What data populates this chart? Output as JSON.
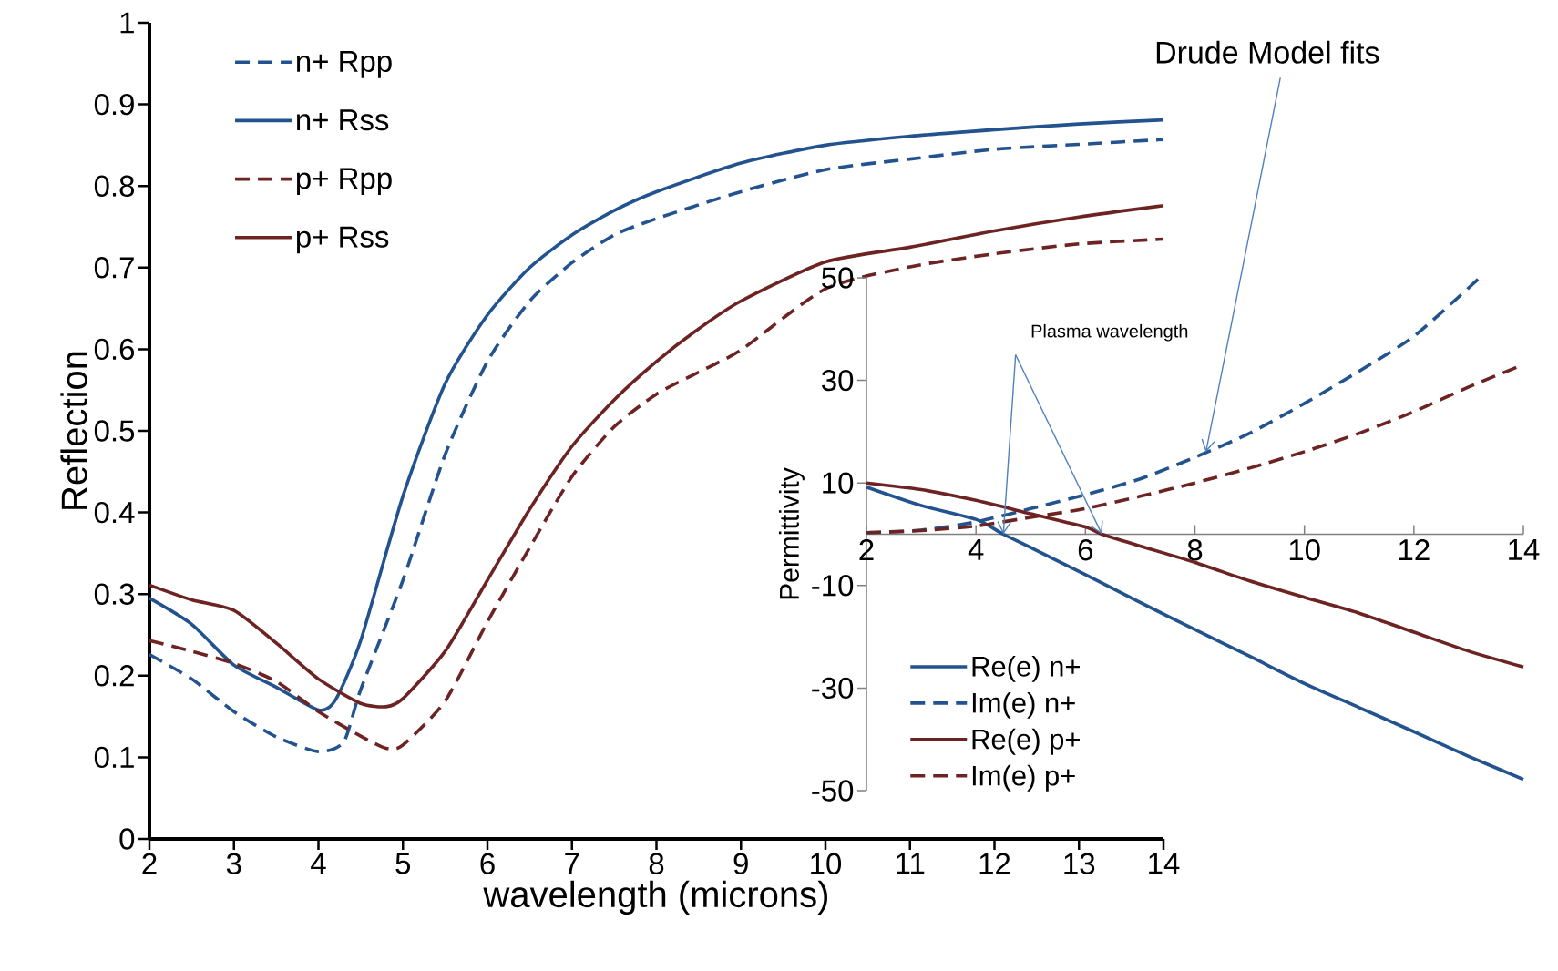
{
  "chart_data": [
    {
      "type": "line",
      "xlabel": "wavelength (microns)",
      "ylabel": "Reflection",
      "xlim": [
        2,
        14
      ],
      "ylim": [
        0,
        1
      ],
      "xticks": [
        2,
        3,
        4,
        5,
        6,
        7,
        8,
        9,
        10,
        11,
        12,
        13,
        14
      ],
      "yticks": [
        0,
        0.1,
        0.2,
        0.3,
        0.4,
        0.5,
        0.6,
        0.7,
        0.8,
        0.9,
        1
      ],
      "grid": false,
      "legend": "top left",
      "marker": "none",
      "series": [
        {
          "name": "n+ Rpp",
          "color": "#22538f",
          "line_style": "dashed",
          "x": [
            2,
            2.5,
            3,
            3.5,
            4,
            4.3,
            4.5,
            5,
            5.5,
            6,
            6.5,
            7,
            7.5,
            8,
            9,
            10,
            11,
            12,
            13,
            14
          ],
          "values": [
            0.226,
            0.196,
            0.156,
            0.125,
            0.107,
            0.119,
            0.183,
            0.317,
            0.471,
            0.585,
            0.659,
            0.706,
            0.74,
            0.76,
            0.793,
            0.82,
            0.833,
            0.845,
            0.851,
            0.857
          ]
        },
        {
          "name": "n+ Rss",
          "color": "#22538f",
          "line_style": "solid",
          "x": [
            2,
            2.5,
            3,
            3.5,
            4,
            4.2,
            4.5,
            5,
            5.5,
            6,
            6.5,
            7,
            7.5,
            8,
            9,
            10,
            11,
            12,
            13,
            14
          ],
          "values": [
            0.295,
            0.263,
            0.213,
            0.186,
            0.158,
            0.17,
            0.243,
            0.42,
            0.558,
            0.642,
            0.7,
            0.74,
            0.77,
            0.793,
            0.828,
            0.85,
            0.861,
            0.869,
            0.876,
            0.881
          ]
        },
        {
          "name": "p+ Rpp",
          "color": "#6e2323",
          "line_style": "dashed",
          "x": [
            2,
            2.5,
            3,
            3.5,
            4,
            4.5,
            4.8,
            5,
            5.5,
            6,
            6.5,
            7,
            7.5,
            8,
            8.5,
            9,
            10,
            11,
            12,
            13,
            14
          ],
          "values": [
            0.243,
            0.23,
            0.215,
            0.193,
            0.156,
            0.126,
            0.111,
            0.115,
            0.169,
            0.266,
            0.357,
            0.444,
            0.505,
            0.545,
            0.572,
            0.599,
            0.674,
            0.701,
            0.717,
            0.729,
            0.735
          ]
        },
        {
          "name": "p+ Rss",
          "color": "#6e2323",
          "line_style": "solid",
          "x": [
            2,
            2.5,
            3,
            3.5,
            4,
            4.5,
            4.8,
            5,
            5.5,
            6,
            6.5,
            7,
            7.5,
            8,
            8.5,
            9,
            10,
            11,
            12,
            13,
            14
          ],
          "values": [
            0.311,
            0.293,
            0.28,
            0.24,
            0.196,
            0.166,
            0.162,
            0.172,
            0.23,
            0.317,
            0.404,
            0.481,
            0.538,
            0.585,
            0.625,
            0.659,
            0.707,
            0.725,
            0.745,
            0.762,
            0.776
          ]
        }
      ]
    },
    {
      "type": "line",
      "ylabel": "Permittivity",
      "xlim": [
        2,
        14
      ],
      "ylim": [
        -50,
        50
      ],
      "xticks": [
        2,
        4,
        6,
        8,
        10,
        12,
        14
      ],
      "yticks": [
        -50,
        -30,
        -10,
        10,
        30,
        50
      ],
      "grid": false,
      "legend": "bottom left",
      "marker": "none",
      "annotations": [
        {
          "text": "Plasma wavelength",
          "x": 4.5,
          "y": 0
        },
        {
          "text": "Drude Model fits",
          "x": 8.2,
          "y": 16
        }
      ],
      "series": [
        {
          "name": "Re(e)  n+",
          "color": "#22538f",
          "line_style": "solid",
          "x": [
            2,
            3,
            4,
            4.5,
            5,
            6,
            7,
            8,
            9,
            10,
            11,
            12,
            13,
            14
          ],
          "values": [
            9.2,
            5.6,
            2.9,
            0,
            -2.6,
            -7.9,
            -13.3,
            -18.6,
            -23.8,
            -29.1,
            -33.8,
            -38.5,
            -43.3,
            -47.8
          ]
        },
        {
          "name": "Im(e) n+",
          "color": "#22538f",
          "line_style": "dashed",
          "x": [
            2,
            3,
            4,
            5,
            6,
            7,
            8,
            9,
            10,
            11,
            12,
            13.2
          ],
          "values": [
            0.3,
            0.8,
            2.4,
            5,
            7.7,
            10.8,
            15,
            19.7,
            25.5,
            31.8,
            38.6,
            50
          ]
        },
        {
          "name": "Re(e) p+",
          "color": "#6e2323",
          "line_style": "solid",
          "x": [
            2,
            3,
            4,
            5,
            6,
            6.3,
            7,
            8,
            9,
            10,
            11,
            12,
            13,
            14
          ],
          "values": [
            10,
            8.7,
            6.6,
            4,
            1.4,
            0,
            -2.3,
            -5.5,
            -9.1,
            -12.3,
            -15.4,
            -19.1,
            -22.8,
            -25.9
          ]
        },
        {
          "name": "Im(e) p+",
          "color": "#6e2323",
          "line_style": "dashed",
          "x": [
            2,
            3,
            4,
            5,
            6,
            7,
            8,
            9,
            10,
            11,
            12,
            13,
            14
          ],
          "values": [
            0.3,
            0.7,
            1.6,
            3.3,
            5,
            7.4,
            10,
            12.9,
            16.1,
            19.7,
            23.9,
            28.7,
            33.1
          ]
        }
      ]
    }
  ]
}
